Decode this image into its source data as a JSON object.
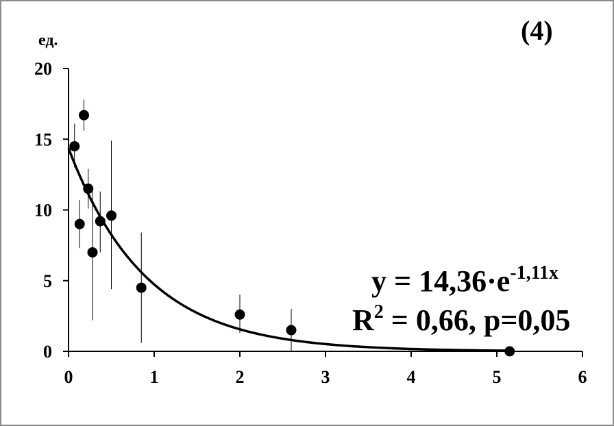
{
  "chart_data": {
    "type": "scatter",
    "panel_label": "(4)",
    "ylabel": "ед.",
    "xlabel": "",
    "xlim": [
      0,
      6
    ],
    "ylim": [
      0,
      20
    ],
    "x_ticks": [
      "0",
      "1",
      "2",
      "3",
      "4",
      "5",
      "6"
    ],
    "y_ticks": [
      "0",
      "5",
      "10",
      "15",
      "20"
    ],
    "grid": false,
    "points": [
      {
        "x": 0.07,
        "y": 14.5,
        "err_low": 13.0,
        "err_high": 16.1
      },
      {
        "x": 0.13,
        "y": 9.0,
        "err_low": 7.3,
        "err_high": 10.7
      },
      {
        "x": 0.18,
        "y": 16.7,
        "err_low": 15.6,
        "err_high": 17.8
      },
      {
        "x": 0.23,
        "y": 11.5,
        "err_low": 10.1,
        "err_high": 12.9
      },
      {
        "x": 0.28,
        "y": 7.0,
        "err_low": 2.2,
        "err_high": 11.3
      },
      {
        "x": 0.37,
        "y": 9.2,
        "err_low": 7.0,
        "err_high": 11.3
      },
      {
        "x": 0.5,
        "y": 9.6,
        "err_low": 4.4,
        "err_high": 14.9
      },
      {
        "x": 0.85,
        "y": 4.5,
        "err_low": 0.6,
        "err_high": 8.4
      },
      {
        "x": 2.0,
        "y": 2.6,
        "err_low": 1.3,
        "err_high": 4.0
      },
      {
        "x": 2.6,
        "y": 1.5,
        "err_low": 0.0,
        "err_high": 3.0
      },
      {
        "x": 5.15,
        "y": 0.0,
        "err_low": 0.0,
        "err_high": 0.0
      }
    ],
    "fit": {
      "type": "exponential",
      "a": 14.36,
      "b": -1.11,
      "x_range": [
        0,
        5.2
      ]
    },
    "equation": {
      "line1_main": "y = 14,36·e",
      "line1_sup": "-1,11x",
      "line2_a": "R",
      "line2_sup": "2",
      "line2_b": " = 0,66, p=0,05"
    }
  }
}
